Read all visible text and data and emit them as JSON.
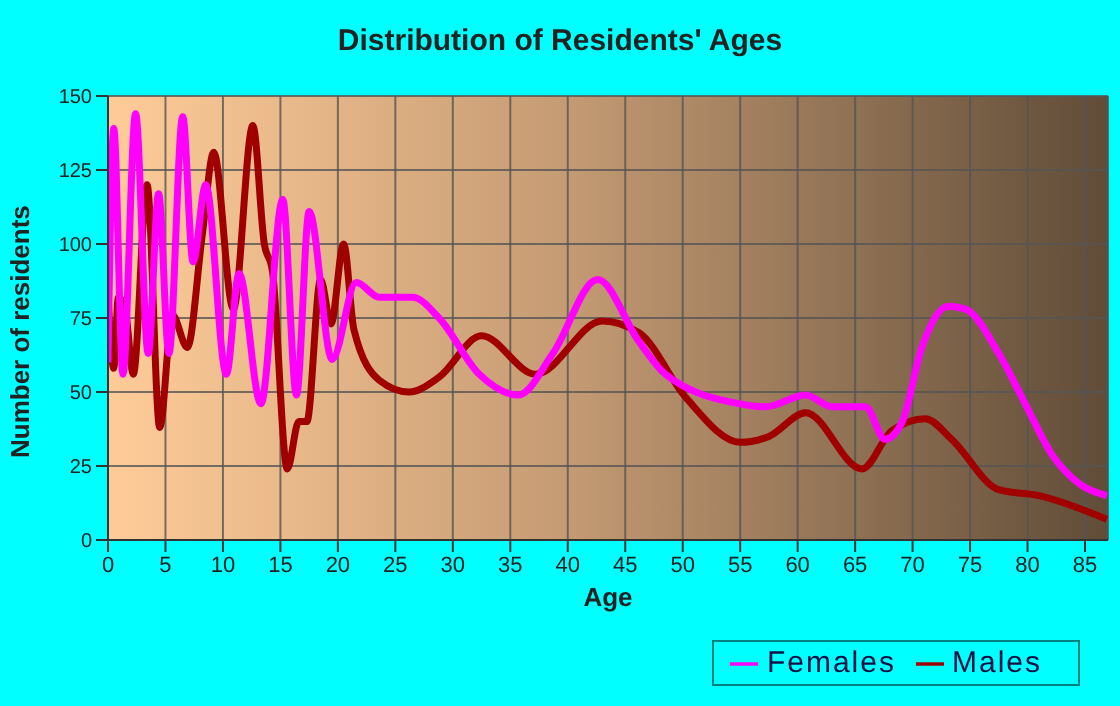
{
  "chart_data": {
    "type": "line",
    "title": "Distribution of Residents' Ages",
    "xlabel": "Age",
    "ylabel": "Number of residents",
    "xlim": [
      0,
      87
    ],
    "xticks": [
      0,
      5,
      10,
      15,
      20,
      25,
      30,
      35,
      40,
      45,
      50,
      55,
      60,
      65,
      70,
      75,
      80,
      85
    ],
    "ylim": [
      0,
      150
    ],
    "yticks": [
      0,
      25,
      50,
      75,
      100,
      125,
      150
    ],
    "grid": true,
    "legend": "bottom",
    "marker": "none",
    "line_style": "solid",
    "series": [
      {
        "name": "Males",
        "color": "#a00000",
        "x": [
          0,
          0.5,
          0.9,
          1.5,
          2.2,
          3.4,
          4.5,
          5.6,
          6.9,
          8.2,
          9.2,
          10.9,
          12.6,
          13.6,
          14.3,
          15.6,
          16.6,
          17.3,
          18.5,
          19.4,
          20.5,
          21.4,
          23.6,
          26.2,
          28.8,
          32.5,
          37.2,
          43,
          46.2,
          50.3,
          55,
          57.5,
          60.7,
          65.6,
          68.2,
          71.1,
          73.4,
          77.5,
          81,
          86.9
        ],
        "values": [
          83,
          58,
          82,
          78,
          56,
          120,
          38,
          76,
          65,
          103,
          131,
          78,
          140,
          100,
          91,
          24,
          40,
          40,
          88,
          73,
          100,
          71,
          54,
          50,
          55,
          69,
          56,
          74,
          70,
          48,
          33,
          35,
          43,
          24,
          37,
          41,
          34,
          17,
          15,
          7
        ]
      },
      {
        "name": "Females",
        "color": "#ff00ff",
        "x": [
          0,
          0.5,
          1.3,
          2.4,
          3.5,
          4.4,
          5.3,
          6.5,
          7.4,
          8.5,
          10.3,
          11.4,
          13.3,
          15.2,
          16.4,
          17.5,
          19.5,
          21.6,
          23.6,
          26.5,
          28.8,
          32.3,
          35.7,
          38.7,
          42.6,
          46.2,
          48.5,
          55,
          57.2,
          60.7,
          63,
          65.9,
          67.6,
          69.1,
          70.8,
          73.1,
          74.6,
          77.5,
          79.8,
          82.1,
          84.5,
          86.9
        ],
        "values": [
          60,
          139,
          56,
          144,
          63,
          117,
          63,
          143,
          94,
          120,
          56,
          90,
          46,
          115,
          49,
          111,
          61,
          87,
          82,
          82,
          75,
          56,
          49,
          63,
          88,
          67,
          56,
          46,
          45,
          49,
          45,
          45,
          34,
          40,
          65,
          79,
          78,
          63,
          46,
          29,
          19,
          15
        ]
      }
    ]
  }
}
